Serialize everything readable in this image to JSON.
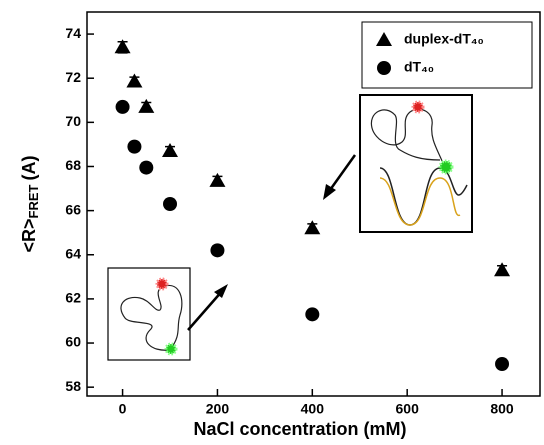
{
  "chart_data": {
    "type": "scatter",
    "xlabel": "NaCl concentration (mM)",
    "ylabel": {
      "text": "<R>",
      "subscript": "FRET",
      "unit": "(A)"
    },
    "series": [
      {
        "name": "duplex-dT₄₀",
        "marker": "triangle",
        "color": "#000000",
        "x": [
          0,
          25,
          50,
          100,
          200,
          400,
          800
        ],
        "values": [
          73.4,
          71.85,
          70.7,
          68.7,
          67.35,
          65.2,
          63.3
        ],
        "errors": [
          0.25,
          0.2,
          0.2,
          0.2,
          0.2,
          0.2,
          0.2
        ]
      },
      {
        "name": "dT₄₀",
        "marker": "circle",
        "color": "#000000",
        "x": [
          0,
          25,
          50,
          100,
          200,
          400,
          800
        ],
        "values": [
          70.7,
          68.9,
          67.95,
          66.3,
          64.2,
          61.3,
          59.05
        ],
        "errors": [
          0.2,
          0.2,
          0.2,
          0.2,
          0.2,
          0.15,
          0.15
        ]
      }
    ],
    "xlim": [
      -75,
      880
    ],
    "xticks": [
      0,
      200,
      400,
      600,
      800
    ],
    "ylim": [
      57.6,
      75
    ],
    "yticks": [
      58,
      60,
      62,
      64,
      66,
      68,
      70,
      72,
      74
    ],
    "legend": "top-right"
  }
}
